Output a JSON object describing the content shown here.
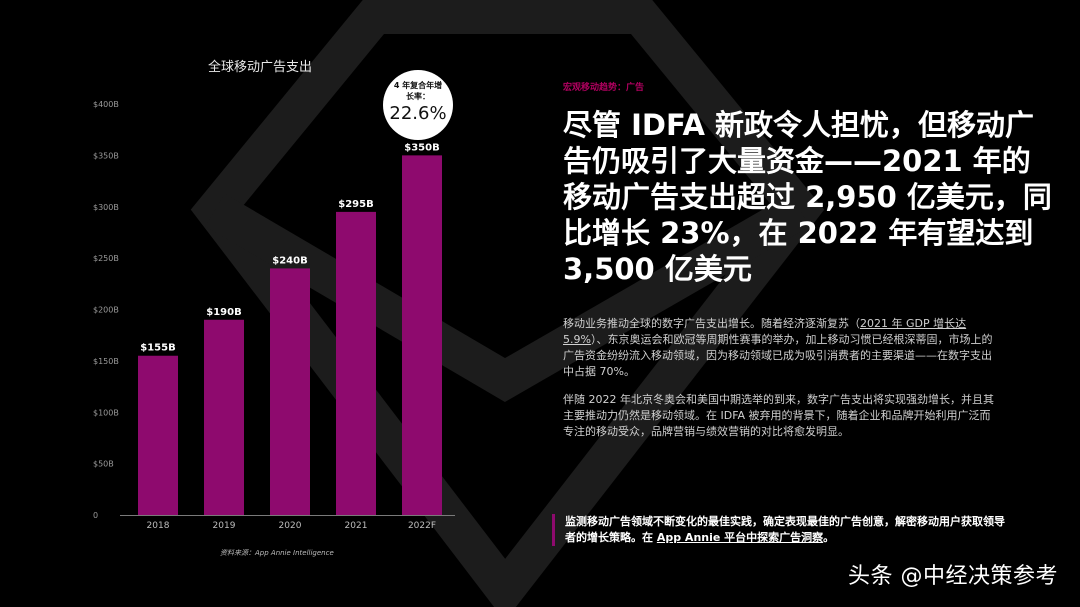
{
  "chart_data": {
    "type": "bar",
    "title": "全球移动广告支出",
    "categories": [
      "2018",
      "2019",
      "2020",
      "2021",
      "2022F"
    ],
    "values": [
      155,
      190,
      240,
      295,
      350
    ],
    "data_labels": [
      "$155B",
      "$190B",
      "$240B",
      "$295B",
      "$350B"
    ],
    "y_ticks": [
      0,
      50,
      100,
      150,
      200,
      250,
      300,
      350,
      400
    ],
    "y_tick_labels": [
      "0",
      "$50B",
      "$100B",
      "$150B",
      "$200B",
      "$250B",
      "$300B",
      "$350B",
      "$400B"
    ],
    "ylim": [
      0,
      400
    ],
    "xlabel": "",
    "ylabel": "",
    "grid": false,
    "bar_color": "#8e0a6e",
    "annotation": {
      "label": "4 年复合年增长率：",
      "value": "22.6%"
    }
  },
  "source": "资料来源：App Annie Intelligence",
  "eyebrow": "宏观移动趋势：广告",
  "headline": "尽管 IDFA 新政令人担忧，但移动广告仍吸引了大量资金——2021 年的移动广告支出超过 2,950 亿美元，同比增长 23%，在 2022 年有望达到 3,500 亿美元",
  "paragraph1": {
    "before": "移动业务推动全球的数字广告支出增长。随着经济逐渐复苏（",
    "link": "2021 年 GDP 增长达 5.9%",
    "after": "）、东京奥运会和欧冠等周期性赛事的举办，加上移动习惯已经根深蒂固，市场上的广告资金纷纷流入移动领域，因为移动领域已成为吸引消费者的主要渠道——在数字支出中占据 70%。"
  },
  "paragraph2": "伴随 2022 年北京冬奥会和美国中期选举的到来，数字广告支出将实现强劲增长，并且其主要推动力仍然是移动领域。在 IDFA 被弃用的背景下，随着企业和品牌开始利用广泛而专注的移动受众，品牌营销与绩效营销的对比将愈发明显。",
  "callout": {
    "before": "监测移动广告领域不断变化的最佳实践，确定表现最佳的广告创意，解密移动用户获取领导者的增长策略。在 ",
    "link": "App Annie 平台中探索广告洞察",
    "after": "。"
  },
  "watermark": "头条 @中经决策参考",
  "colors": {
    "accent": "#8e0a6e",
    "eyebrow": "#b0005f",
    "background": "#000000"
  }
}
